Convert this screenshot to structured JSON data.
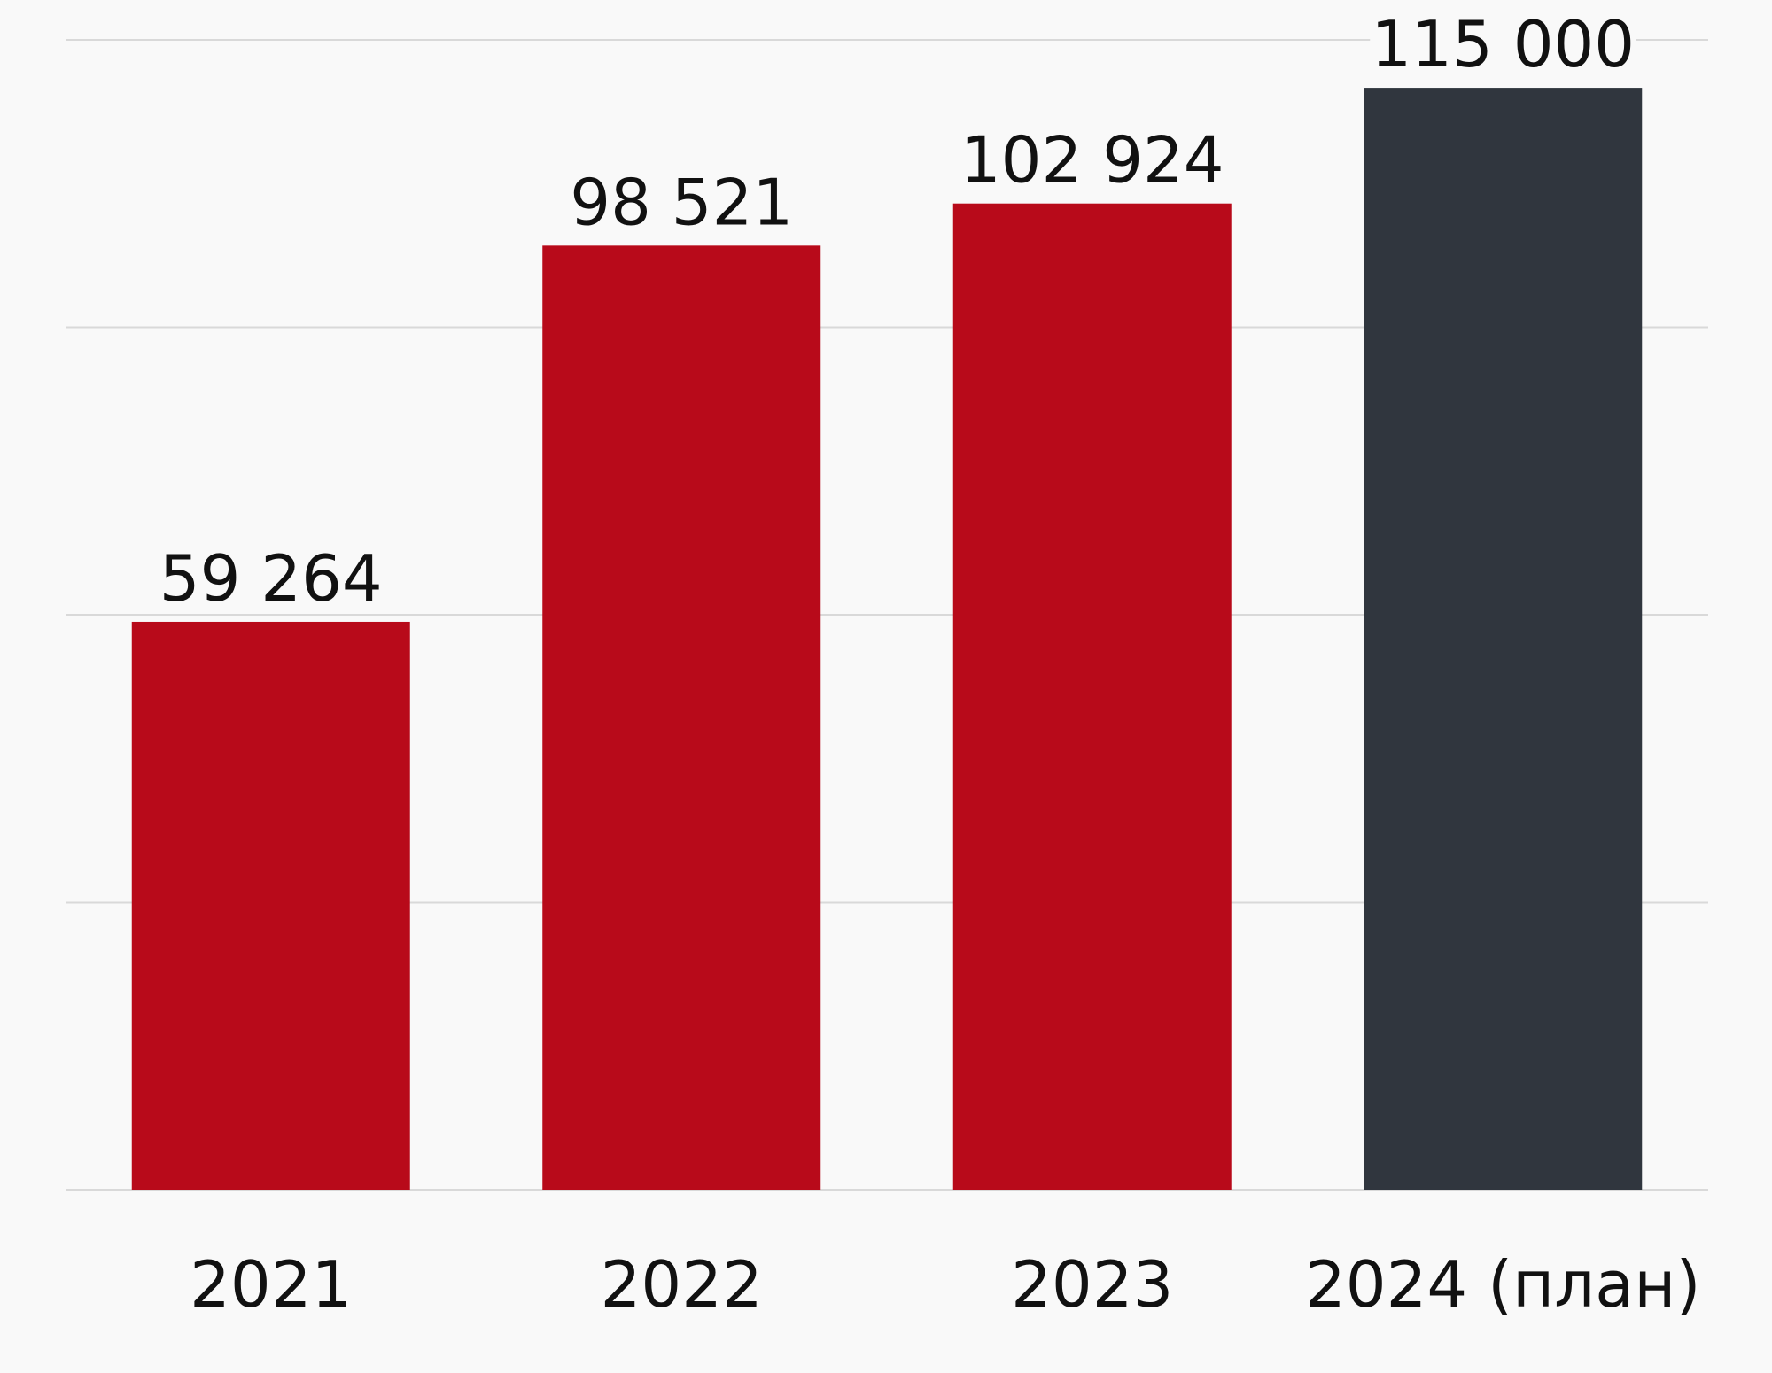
{
  "chart_data": {
    "type": "bar",
    "categories": [
      "2021",
      "2022",
      "2023",
      "2024 (план)"
    ],
    "values": [
      59264,
      98521,
      102924,
      115000
    ],
    "value_labels": [
      "59 264",
      "98 521",
      "102 924",
      "115 000"
    ],
    "title": "",
    "xlabel": "",
    "ylabel": "",
    "ylim": [
      0,
      120000
    ],
    "grid": true,
    "legend": "none",
    "bar_colors": [
      "#b80a1a",
      "#b80a1a",
      "#b80a1a",
      "#30363e"
    ],
    "grid_color": "#d9d9d9",
    "background": "#f9f9f9"
  }
}
